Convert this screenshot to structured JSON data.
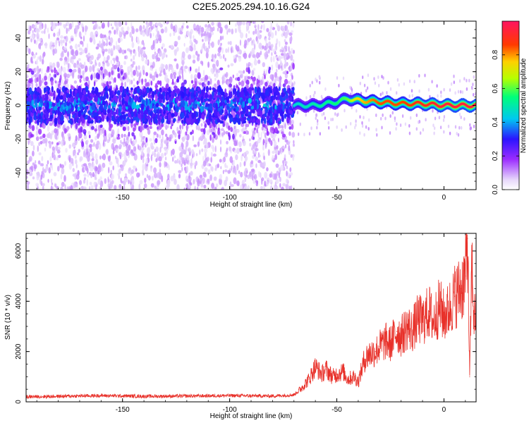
{
  "chart_data": [
    {
      "type": "heatmap",
      "title": "C2E5.2025.294.10.16.G24",
      "xlabel": "Height of straight line (km)",
      "ylabel": "Frequency (Hz)",
      "xlim": [
        -195,
        15
      ],
      "ylim": [
        -50,
        50
      ],
      "xticks": [
        -150,
        -100,
        -50,
        0
      ],
      "yticks": [
        40,
        20,
        0,
        -20,
        -40
      ],
      "colorbar": {
        "label": "Normalized spectral amplitude",
        "range": [
          0.0,
          1.0
        ],
        "ticks": [
          "0.0",
          "0.2",
          "0.4",
          "0.6",
          "0.8"
        ],
        "tick_values": [
          0.0,
          0.2,
          0.4,
          0.6,
          0.8
        ]
      },
      "description_features": {
        "noise_region_x": [
          -195,
          -70
        ],
        "signal_track": [
          {
            "x": -70,
            "freq": 0,
            "amplitude": 0.45
          },
          {
            "x": -60,
            "freq": 0,
            "amplitude": 0.5
          },
          {
            "x": -50,
            "freq": 2,
            "amplitude": 0.55
          },
          {
            "x": -45,
            "freq": 4,
            "amplitude": 0.6
          },
          {
            "x": -40,
            "freq": 3,
            "amplitude": 0.75
          },
          {
            "x": -30,
            "freq": 2,
            "amplitude": 0.85
          },
          {
            "x": -20,
            "freq": 1,
            "amplitude": 0.85
          },
          {
            "x": -10,
            "freq": 1,
            "amplitude": 0.9
          },
          {
            "x": 0,
            "freq": 0,
            "amplitude": 0.95
          },
          {
            "x": 15,
            "freq": 0,
            "amplitude": 0.95
          }
        ]
      }
    },
    {
      "type": "line",
      "title": "",
      "xlabel": "Height of straight line (km)",
      "ylabel": "SNR (10 * v/v)",
      "xlim": [
        -195,
        15
      ],
      "ylim": [
        0,
        6700
      ],
      "xticks": [
        -150,
        -100,
        -50,
        0
      ],
      "yticks": [
        0,
        2000,
        4000,
        6000
      ],
      "color": "#e8312a",
      "series": [
        {
          "name": "SNR",
          "x": [
            -195,
            -180,
            -160,
            -140,
            -120,
            -100,
            -80,
            -70,
            -67,
            -63,
            -60,
            -57,
            -55,
            -52,
            -50,
            -47,
            -45,
            -42,
            -40,
            -37,
            -35,
            -32,
            -30,
            -27,
            -25,
            -22,
            -20,
            -17,
            -15,
            -12,
            -10,
            -7,
            -5,
            -2,
            0,
            2,
            5,
            8,
            10,
            11,
            12,
            13,
            14,
            15
          ],
          "values": [
            200,
            220,
            250,
            220,
            230,
            250,
            230,
            280,
            500,
            900,
            1400,
            1100,
            1300,
            1000,
            1100,
            1200,
            900,
            1000,
            800,
            1700,
            1900,
            2000,
            2200,
            2400,
            2300,
            2800,
            2600,
            3000,
            2800,
            3300,
            3200,
            3600,
            3200,
            3800,
            3400,
            3600,
            4200,
            4500,
            5000,
            6500,
            1000,
            5500,
            3300,
            3600
          ]
        }
      ]
    }
  ]
}
